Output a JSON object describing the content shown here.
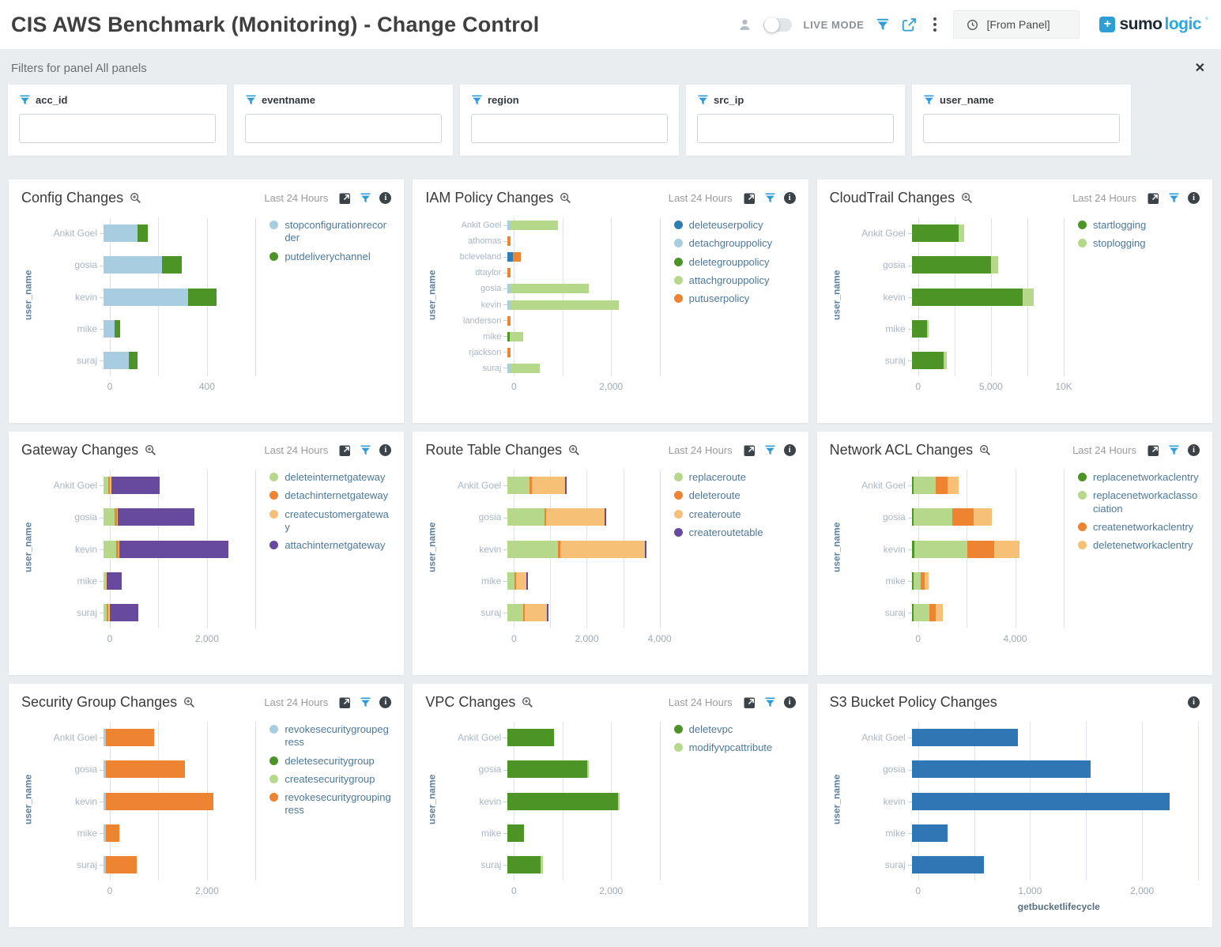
{
  "header": {
    "title": "CIS AWS Benchmark (Monitoring) - Change Control",
    "live_mode_label": "LIVE MODE",
    "time_label": "[From Panel]",
    "brand": {
      "mark": "+",
      "part1": "sumo",
      "part2": "logic",
      "suffix": "°"
    }
  },
  "filters": {
    "section_label": "Filters for panel All panels",
    "close_label": "✕",
    "items": [
      {
        "label": "acc_id",
        "value": "",
        "placeholder": ""
      },
      {
        "label": "eventname",
        "value": "",
        "placeholder": ""
      },
      {
        "label": "region",
        "value": "",
        "placeholder": ""
      },
      {
        "label": "src_ip",
        "value": "",
        "placeholder": ""
      },
      {
        "label": "user_name",
        "value": "",
        "placeholder": ""
      }
    ]
  },
  "colors": {
    "accent_blue": "#2f9cd8",
    "gridline": "#dde3e8",
    "legend_text": "#4d7999"
  },
  "panels": [
    {
      "title": "Config Changes",
      "zoom_icon": true,
      "time_range": "Last 24 Hours",
      "actions": [
        "expand",
        "filter",
        "info"
      ],
      "chart_index": 0
    },
    {
      "title": "IAM Policy Changes",
      "zoom_icon": true,
      "time_range": "Last 24 Hours",
      "actions": [
        "expand",
        "filter",
        "info"
      ],
      "chart_index": 1
    },
    {
      "title": "CloudTrail Changes",
      "zoom_icon": true,
      "time_range": "Last 24 Hours",
      "actions": [
        "expand",
        "filter",
        "info"
      ],
      "chart_index": 2
    },
    {
      "title": "Gateway Changes",
      "zoom_icon": true,
      "time_range": "Last 24 Hours",
      "actions": [
        "expand",
        "filter",
        "info"
      ],
      "chart_index": 3
    },
    {
      "title": "Route Table Changes",
      "zoom_icon": true,
      "time_range": "Last 24 Hours",
      "actions": [
        "expand",
        "filter",
        "info"
      ],
      "chart_index": 4
    },
    {
      "title": "Network ACL Changes",
      "zoom_icon": true,
      "time_range": "Last 24 Hours",
      "actions": [
        "expand",
        "filter",
        "info"
      ],
      "chart_index": 5
    },
    {
      "title": "Security Group Changes",
      "zoom_icon": true,
      "time_range": "Last 24 Hours",
      "actions": [
        "expand",
        "filter",
        "info"
      ],
      "chart_index": 6
    },
    {
      "title": "VPC Changes",
      "zoom_icon": true,
      "time_range": "Last 24 Hours",
      "actions": [
        "expand",
        "filter",
        "info"
      ],
      "chart_index": 7
    },
    {
      "title": "S3 Bucket Policy Changes",
      "zoom_icon": false,
      "time_range": "",
      "actions": [
        "info"
      ],
      "chart_index": 8
    }
  ],
  "chart_data": [
    {
      "type": "bar",
      "stacked": true,
      "orientation": "horizontal",
      "title": "Config Changes",
      "ylabel": "user_name",
      "categories": [
        "Ankit Goel",
        "gosia",
        "kevin",
        "mike",
        "suraj"
      ],
      "series": [
        {
          "name": "stopconfigurationrecorder",
          "color": "#a8cce0",
          "values": [
            135,
            230,
            335,
            45,
            100
          ]
        },
        {
          "name": "putdeliverychannel",
          "color": "#4d9426",
          "values": [
            40,
            80,
            110,
            20,
            35
          ]
        }
      ],
      "xmax": 600,
      "grid_interval": 200,
      "ticks": [
        {
          "value": 0,
          "label": "0"
        },
        {
          "value": 400,
          "label": "400"
        }
      ]
    },
    {
      "type": "bar",
      "stacked": true,
      "orientation": "horizontal",
      "title": "IAM Policy Changes",
      "ylabel": "user_name",
      "categories": [
        "Ankit Goel",
        "athomas",
        "bcleveland",
        "dtaylor",
        "gosia",
        "kevin",
        "landerson",
        "mike",
        "rjackson",
        "suraj"
      ],
      "series": [
        {
          "name": "deleteuserpolicy",
          "color": "#2e7eb3",
          "values": [
            0,
            0,
            100,
            0,
            0,
            0,
            0,
            0,
            0,
            0
          ]
        },
        {
          "name": "detachgrouppolicy",
          "color": "#a8cce0",
          "values": [
            40,
            0,
            0,
            0,
            40,
            60,
            0,
            0,
            0,
            40
          ]
        },
        {
          "name": "deletegrouppolicy",
          "color": "#4d9426",
          "values": [
            0,
            0,
            0,
            0,
            0,
            0,
            0,
            40,
            0,
            0
          ]
        },
        {
          "name": "attachgrouppolicy",
          "color": "#b6d88a",
          "values": [
            960,
            0,
            0,
            0,
            1560,
            2140,
            0,
            260,
            0,
            590
          ]
        },
        {
          "name": "putuserpolicy",
          "color": "#ee8431",
          "values": [
            0,
            60,
            160,
            60,
            0,
            0,
            60,
            0,
            60,
            0
          ]
        }
      ],
      "xmax": 3000,
      "grid_interval": 1000,
      "ticks": [
        {
          "value": 0,
          "label": "0"
        },
        {
          "value": 2000,
          "label": "2,000"
        }
      ]
    },
    {
      "type": "bar",
      "stacked": true,
      "orientation": "horizontal",
      "title": "CloudTrail Changes",
      "ylabel": "user_name",
      "categories": [
        "Ankit Goel",
        "gosia",
        "kevin",
        "mike",
        "suraj"
      ],
      "series": [
        {
          "name": "startlogging",
          "color": "#4d9426",
          "values": [
            3100,
            5200,
            7300,
            1000,
            2100
          ]
        },
        {
          "name": "stoplogging",
          "color": "#b6d88a",
          "values": [
            350,
            480,
            700,
            120,
            220
          ]
        }
      ],
      "xmax": 10000,
      "grid_interval": 2500,
      "ticks": [
        {
          "value": 0,
          "label": "0"
        },
        {
          "value": 5000,
          "label": "5,000"
        },
        {
          "value": 10000,
          "label": "10K"
        }
      ]
    },
    {
      "type": "bar",
      "stacked": true,
      "orientation": "horizontal",
      "title": "Gateway Changes",
      "ylabel": "user_name",
      "categories": [
        "Ankit Goel",
        "gosia",
        "kevin",
        "mike",
        "suraj"
      ],
      "series": [
        {
          "name": "deleteinternetgateway",
          "color": "#b6d88a",
          "values": [
            100,
            220,
            250,
            40,
            60
          ]
        },
        {
          "name": "detachinternetgateway",
          "color": "#ee8431",
          "values": [
            30,
            40,
            40,
            12,
            40
          ]
        },
        {
          "name": "createcustomergateway",
          "color": "#f6c077",
          "values": [
            20,
            20,
            20,
            12,
            20
          ]
        },
        {
          "name": "attachinternetgateway",
          "color": "#67499e",
          "values": [
            950,
            1520,
            2160,
            300,
            570
          ]
        }
      ],
      "xmax": 3000,
      "grid_interval": 1000,
      "ticks": [
        {
          "value": 0,
          "label": "0"
        },
        {
          "value": 2000,
          "label": "2,000"
        }
      ]
    },
    {
      "type": "bar",
      "stacked": true,
      "orientation": "horizontal",
      "title": "Route Table Changes",
      "ylabel": "user_name",
      "categories": [
        "Ankit Goel",
        "gosia",
        "kevin",
        "mike",
        "suraj"
      ],
      "series": [
        {
          "name": "replaceroute",
          "color": "#b6d88a",
          "values": [
            580,
            970,
            1330,
            170,
            400
          ]
        },
        {
          "name": "deleteroute",
          "color": "#ee8431",
          "values": [
            50,
            50,
            60,
            50,
            50
          ]
        },
        {
          "name": "createroute",
          "color": "#f6c077",
          "values": [
            880,
            1540,
            2220,
            280,
            580
          ]
        },
        {
          "name": "createroutetable",
          "color": "#67499e",
          "values": [
            40,
            40,
            40,
            40,
            40
          ]
        }
      ],
      "xmax": 4000,
      "grid_interval": 1000,
      "ticks": [
        {
          "value": 0,
          "label": "0"
        },
        {
          "value": 2000,
          "label": "2,000"
        },
        {
          "value": 4000,
          "label": "4,000"
        }
      ]
    },
    {
      "type": "bar",
      "stacked": true,
      "orientation": "horizontal",
      "title": "Network ACL Changes",
      "ylabel": "user_name",
      "categories": [
        "Ankit Goel",
        "gosia",
        "kevin",
        "mike",
        "suraj"
      ],
      "series": [
        {
          "name": "replacenetworkaclentry",
          "color": "#4d9426",
          "values": [
            60,
            60,
            100,
            80,
            80
          ]
        },
        {
          "name": "replacenetworkaclassociation",
          "color": "#b6d88a",
          "values": [
            900,
            1540,
            2080,
            280,
            620
          ]
        },
        {
          "name": "createnetworkaclentry",
          "color": "#ee8431",
          "values": [
            440,
            850,
            1070,
            150,
            260
          ]
        },
        {
          "name": "deletenetworkaclentry",
          "color": "#f6c077",
          "values": [
            450,
            710,
            1000,
            150,
            270
          ]
        }
      ],
      "xmax": 6000,
      "grid_interval": 2000,
      "ticks": [
        {
          "value": 0,
          "label": "0"
        },
        {
          "value": 4000,
          "label": "4,000"
        }
      ]
    },
    {
      "type": "bar",
      "stacked": true,
      "orientation": "horizontal",
      "title": "Security Group Changes",
      "ylabel": "user_name",
      "categories": [
        "Ankit Goel",
        "gosia",
        "kevin",
        "mike",
        "suraj"
      ],
      "series": [
        {
          "name": "revokesecuritygroupegress",
          "color": "#a8cce0",
          "values": [
            40,
            40,
            40,
            40,
            40
          ]
        },
        {
          "name": "deletesecuritygroup",
          "color": "#4d9426",
          "values": [
            0,
            0,
            0,
            0,
            0
          ]
        },
        {
          "name": "createsecuritygroup",
          "color": "#b6d88a",
          "values": [
            0,
            0,
            0,
            0,
            0
          ]
        },
        {
          "name": "revokesecuritygroupingress",
          "color": "#ee8431",
          "values": [
            960,
            1560,
            2130,
            270,
            610
          ]
        }
      ],
      "xmax": 3000,
      "grid_interval": 1000,
      "ticks": [
        {
          "value": 0,
          "label": "0"
        },
        {
          "value": 2000,
          "label": "2,000"
        }
      ]
    },
    {
      "type": "bar",
      "stacked": true,
      "orientation": "horizontal",
      "title": "VPC Changes",
      "ylabel": "user_name",
      "categories": [
        "Ankit Goel",
        "gosia",
        "kevin",
        "mike",
        "suraj"
      ],
      "series": [
        {
          "name": "deletevpc",
          "color": "#4d9426",
          "values": [
            920,
            1570,
            2180,
            330,
            650
          ]
        },
        {
          "name": "modifyvpcattribute",
          "color": "#b6d88a",
          "values": [
            0,
            30,
            30,
            0,
            40
          ]
        }
      ],
      "xmax": 3000,
      "grid_interval": 1000,
      "ticks": [
        {
          "value": 0,
          "label": "0"
        },
        {
          "value": 2000,
          "label": "2,000"
        }
      ]
    },
    {
      "type": "bar",
      "stacked": false,
      "orientation": "horizontal",
      "title": "S3 Bucket Policy Changes",
      "ylabel": "user_name",
      "xlabel": "getbucketlifecycle",
      "categories": [
        "Ankit Goel",
        "gosia",
        "kevin",
        "mike",
        "suraj"
      ],
      "series": [
        {
          "name": "getbucketlifecycle",
          "color": "#2e76b4",
          "values": [
            930,
            1560,
            2250,
            310,
            630
          ]
        }
      ],
      "xmax": 2500,
      "grid_interval": 500,
      "ticks": [
        {
          "value": 0,
          "label": "0"
        },
        {
          "value": 1000,
          "label": "1,000"
        },
        {
          "value": 2000,
          "label": "2,000"
        }
      ]
    }
  ]
}
